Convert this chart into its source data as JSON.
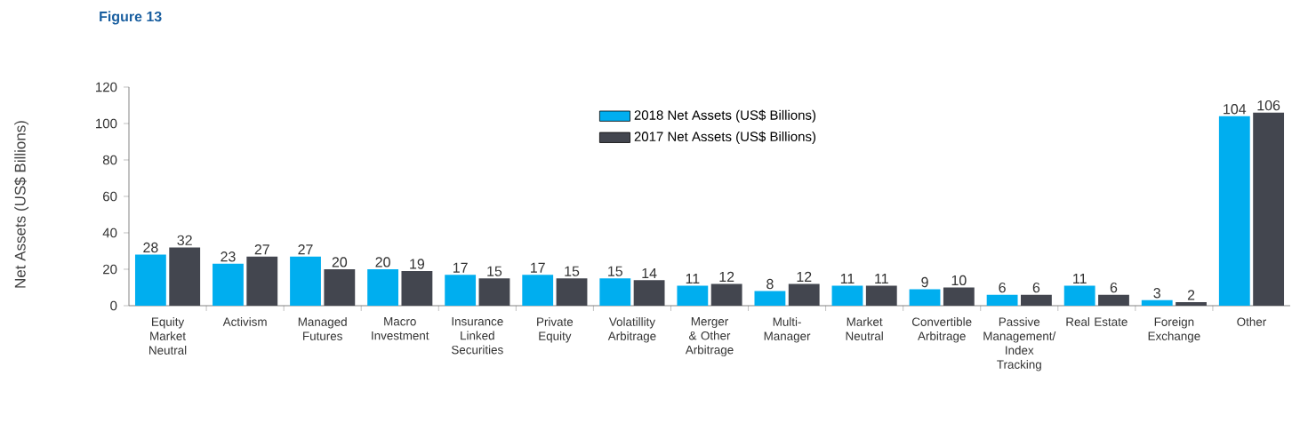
{
  "chart_data": {
    "type": "bar",
    "title": "Figure 13",
    "ylabel": "Net Assets (US$ Billions)",
    "categories": [
      "Equity Market Neutral",
      "Activism",
      "Managed Futures",
      "Macro Investment",
      "Insurance Linked Securities",
      "Private Equity",
      "Volatillity Arbitrage",
      "Merger & Other Arbitrage",
      "Multi-Manager",
      "Market Neutral",
      "Convertible Arbitrage",
      "Passive Management/ Index Tracking",
      "Real Estate",
      "Foreign Exchange",
      "Other"
    ],
    "series": [
      {
        "name": "2018 Net Assets (US$ Billions)",
        "color": "#00aeef",
        "values": [
          28,
          23,
          27,
          20,
          17,
          17,
          15,
          11,
          8,
          11,
          9,
          6,
          11,
          3,
          104
        ]
      },
      {
        "name": "2017 Net Assets (US$ Billions)",
        "color": "#43464f",
        "values": [
          32,
          27,
          20,
          19,
          15,
          15,
          14,
          12,
          12,
          11,
          10,
          6,
          6,
          2,
          106
        ]
      }
    ],
    "ylim": [
      0,
      120
    ],
    "yticks": [
      0,
      20,
      40,
      60,
      80,
      100,
      120
    ],
    "data_labels": true,
    "legend": "top",
    "grid": false
  }
}
